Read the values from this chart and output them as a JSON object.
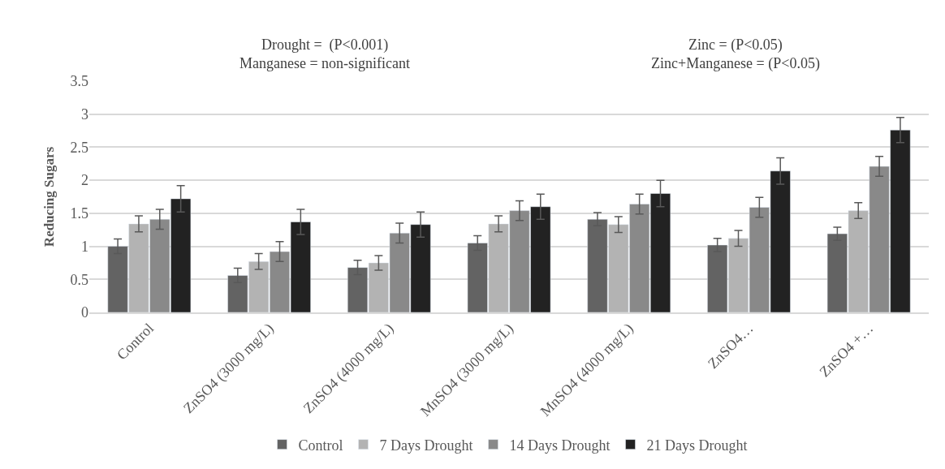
{
  "chart_data": {
    "type": "bar",
    "ylabel": "Reducing Sugars",
    "annotations": [
      "Drought =  (P<0.001)\nManganese = non-significant",
      "Zinc = (P<0.05)\nZinc+Manganese = (P<0.05)"
    ],
    "categories": [
      "Control",
      "ZnSO4 (3000 mg/L)",
      "ZnSO4 (4000 mg/L)",
      "MnSO4 (3000 mg/L)",
      "MnSO4 (4000 mg/L)",
      "ZnSO4…",
      "ZnSO4 +…"
    ],
    "series": [
      {
        "name": "Control",
        "color": "#636363",
        "values": [
          1.0,
          0.56,
          0.68,
          1.05,
          1.41,
          1.02,
          1.19
        ],
        "errors": [
          0.11,
          0.11,
          0.11,
          0.11,
          0.1,
          0.1,
          0.1
        ]
      },
      {
        "name": "7 Days Drought",
        "color": "#b3b3b3",
        "values": [
          1.34,
          0.77,
          0.75,
          1.34,
          1.33,
          1.12,
          1.54
        ],
        "errors": [
          0.12,
          0.12,
          0.11,
          0.12,
          0.12,
          0.12,
          0.12
        ]
      },
      {
        "name": "14 Days Drought",
        "color": "#898989",
        "values": [
          1.41,
          0.92,
          1.2,
          1.54,
          1.64,
          1.59,
          2.21
        ],
        "errors": [
          0.15,
          0.15,
          0.15,
          0.15,
          0.15,
          0.15,
          0.15
        ]
      },
      {
        "name": "21 Days Drought",
        "color": "#222222",
        "values": [
          1.72,
          1.37,
          1.33,
          1.6,
          1.8,
          2.14,
          2.76
        ],
        "errors": [
          0.2,
          0.19,
          0.19,
          0.19,
          0.2,
          0.2,
          0.19
        ]
      }
    ],
    "ylim": [
      0,
      3.5
    ],
    "yticks": [
      0,
      0.5,
      1,
      1.5,
      2,
      2.5,
      3,
      3.5
    ],
    "grid": "y",
    "legend": "bottom"
  }
}
